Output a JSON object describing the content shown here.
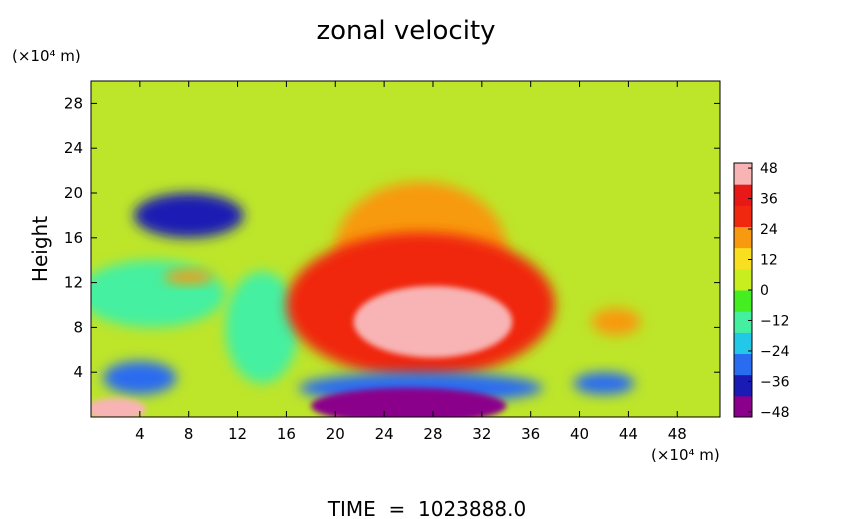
{
  "chart_data": {
    "type": "heatmap",
    "title": "zonal velocity",
    "footer": "TIME  =  1023888.0",
    "ylabel": "Height",
    "y_unit": "(×10⁴ m)",
    "x_unit": "(×10⁴ m)",
    "x_ticks": [
      "4",
      "8",
      "12",
      "16",
      "20",
      "24",
      "28",
      "32",
      "36",
      "40",
      "44",
      "48"
    ],
    "x_tick_values": [
      4,
      8,
      12,
      16,
      20,
      24,
      28,
      32,
      36,
      40,
      44,
      48
    ],
    "y_ticks": [
      "4",
      "8",
      "12",
      "16",
      "20",
      "24",
      "28"
    ],
    "y_tick_values": [
      4,
      8,
      12,
      16,
      20,
      24,
      28
    ],
    "xlim": [
      0,
      51.5
    ],
    "ylim": [
      0,
      30
    ],
    "colorbar": {
      "labels": [
        "48",
        "36",
        "24",
        "12",
        "0",
        "−12",
        "−24",
        "−36",
        "−48"
      ],
      "values": [
        48,
        36,
        24,
        12,
        0,
        -12,
        -24,
        -36,
        -48
      ],
      "range": [
        -50,
        50
      ],
      "colors": [
        "#8b008b",
        "#1a1ab4",
        "#2a6cf0",
        "#22c8e8",
        "#44f0a0",
        "#44ee20",
        "#c8ee20",
        "#f8e020",
        "#f89a10",
        "#f02810",
        "#e81818",
        "#f8b4b4"
      ]
    },
    "features": [
      {
        "x": 28,
        "y": 8.5,
        "rx": 6.5,
        "ry": 3.2,
        "value": 48
      },
      {
        "x": 27,
        "y": 10,
        "rx": 11,
        "ry": 6.5,
        "value": 30
      },
      {
        "x": 27,
        "y": 15,
        "rx": 7,
        "ry": 6,
        "value": 20
      },
      {
        "x": 26,
        "y": 1,
        "rx": 8,
        "ry": 1.6,
        "value": -48
      },
      {
        "x": 27,
        "y": 2.6,
        "rx": 10,
        "ry": 1.4,
        "value": -30
      },
      {
        "x": 8,
        "y": 18,
        "rx": 4.5,
        "ry": 2,
        "value": -36
      },
      {
        "x": 4,
        "y": 3.5,
        "rx": 3,
        "ry": 1.5,
        "value": -30
      },
      {
        "x": 2,
        "y": 0.7,
        "rx": 2.5,
        "ry": 1,
        "value": 48
      },
      {
        "x": 8,
        "y": 12.5,
        "rx": 2,
        "ry": 0.6,
        "value": 22
      },
      {
        "x": 43,
        "y": 8.5,
        "rx": 2,
        "ry": 1.2,
        "value": 24
      },
      {
        "x": 42,
        "y": 3,
        "rx": 2.5,
        "ry": 1,
        "value": -28
      },
      {
        "x": 5,
        "y": 11,
        "rx": 6,
        "ry": 3,
        "value": -10
      },
      {
        "x": 14,
        "y": 8,
        "rx": 3,
        "ry": 5,
        "value": -12
      }
    ]
  }
}
